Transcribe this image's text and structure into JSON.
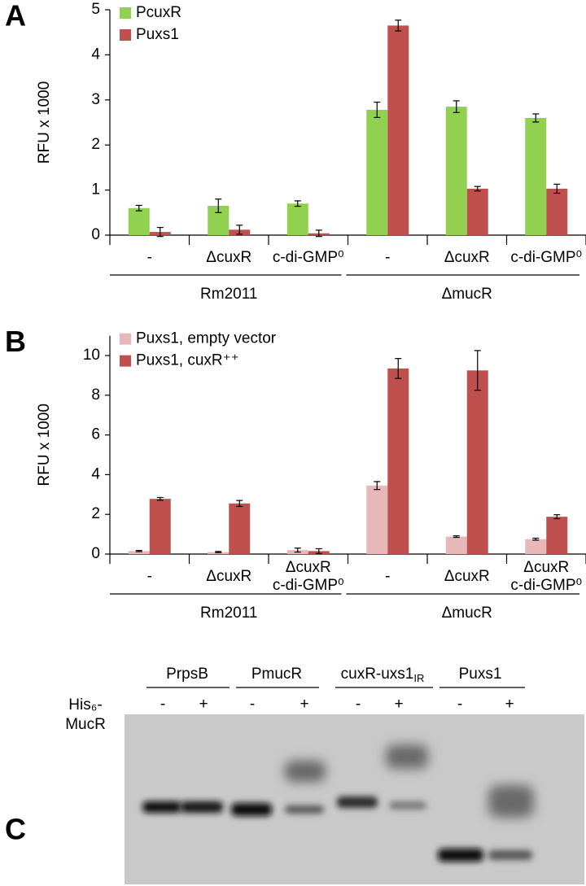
{
  "chart_data": [
    {
      "type": "bar",
      "panel": "A",
      "ylabel": "RFU x 1000",
      "categories": [
        "-",
        "ΔcuxR",
        "c-di-GMP⁰",
        "-",
        "ΔcuxR",
        "c-di-GMP⁰"
      ],
      "groups": [
        "Rm2011",
        "ΔmucR"
      ],
      "series": [
        {
          "name": "PcuxR",
          "color": "#92d050",
          "values": [
            0.6,
            0.65,
            0.7,
            2.78,
            2.85,
            2.6
          ],
          "errors": [
            0.06,
            0.15,
            0.06,
            0.17,
            0.13,
            0.09
          ]
        },
        {
          "name": "Puxs1",
          "color": "#c0504d",
          "values": [
            0.07,
            0.12,
            0.04,
            4.65,
            1.03,
            1.03
          ],
          "errors": [
            0.1,
            0.1,
            0.07,
            0.12,
            0.05,
            0.1
          ]
        }
      ],
      "ylim": [
        0,
        5
      ],
      "yticks": [
        0,
        1,
        2,
        3,
        4,
        5
      ],
      "legend": "upper left"
    },
    {
      "type": "bar",
      "panel": "B",
      "ylabel": "RFU x 1000",
      "categories": [
        "-",
        "ΔcuxR",
        "ΔcuxR\nc-di-GMP⁰",
        "-",
        "ΔcuxR",
        "ΔcuxR\nc-di-GMP⁰"
      ],
      "groups": [
        "Rm2011",
        "ΔmucR"
      ],
      "series": [
        {
          "name": "Puxs1, empty vector",
          "color": "#e6b8b7",
          "values": [
            0.15,
            0.1,
            0.2,
            3.45,
            0.88,
            0.75
          ],
          "errors": [
            0.03,
            0.03,
            0.1,
            0.2,
            0.04,
            0.05
          ]
        },
        {
          "name": "Puxs1, cuxR⁺⁺",
          "color": "#c0504d",
          "values": [
            2.78,
            2.55,
            0.15,
            9.35,
            9.25,
            1.88
          ],
          "errors": [
            0.07,
            0.15,
            0.12,
            0.5,
            1.0,
            0.1
          ]
        }
      ],
      "ylim": [
        0,
        11
      ],
      "yticks": [
        0,
        2,
        4,
        6,
        8,
        10
      ],
      "legend": "upper left"
    }
  ],
  "gel": {
    "panel": "C",
    "probes": [
      {
        "label": "PrpsB"
      },
      {
        "label": "PmucR"
      },
      {
        "label": "cuxR-uxs1",
        "subscript": "IR"
      },
      {
        "label": "Puxs1"
      }
    ],
    "protein_label": [
      "His₆-",
      "MucR"
    ],
    "lanes": [
      "-",
      "+",
      "-",
      "+",
      "-",
      "+",
      "-",
      "+"
    ]
  }
}
